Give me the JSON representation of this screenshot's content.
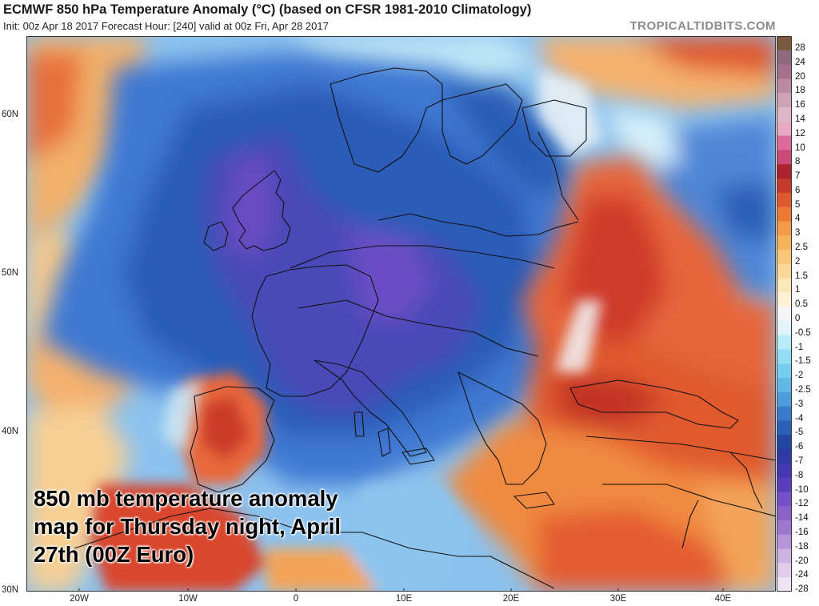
{
  "header": {
    "title": "ECMWF 850 hPa Temperature Anomaly (°C) (based on CFSR 1981-2010 Climatology)",
    "subtitle": "Init: 00z Apr 18 2017   Forecast Hour: [240]   valid at 00z Fri, Apr 28 2017",
    "brand": "TROPICALTIDBITS.COM"
  },
  "map": {
    "lat_labels": [
      "60N",
      "50N",
      "40N",
      "30N"
    ],
    "lon_labels": [
      "20W",
      "10W",
      "0",
      "10E",
      "20E",
      "30E",
      "40E"
    ],
    "region": "Europe",
    "palette": {
      "deep_purple": "#5a3fb8",
      "purple_blue": "#4a55c4",
      "deep_blue": "#2b5fbf",
      "blue": "#3c7ad6",
      "light_blue": "#7ab3ea",
      "cyan": "#a7e3f5",
      "near_zero": "#f2f4f7",
      "light_orange": "#f8c37a",
      "orange": "#f0893f",
      "red_orange": "#e05a2e",
      "red": "#c93428",
      "dark_red": "#9e2325",
      "background_ocean": "#7fb7e8"
    }
  },
  "colorbar": {
    "labels": [
      "28",
      "24",
      "20",
      "18",
      "16",
      "14",
      "12",
      "10",
      "8",
      "7",
      "6",
      "5",
      "4",
      "3",
      "2.5",
      "2",
      "1.5",
      "1",
      "0.5",
      "0",
      "-0.5",
      "-1",
      "-1.5",
      "-2",
      "-2.5",
      "-3",
      "-4",
      "-5",
      "-6",
      "-7",
      "-8",
      "-10",
      "-12",
      "-14",
      "-16",
      "-18",
      "-20",
      "-24",
      "-28"
    ],
    "colors": [
      "#7a5a3e",
      "#8d6a7d",
      "#a5708b",
      "#b98aa0",
      "#cfa2b6",
      "#dbb7c8",
      "#e8a9c3",
      "#d96a9b",
      "#c94a75",
      "#a9242f",
      "#c53a2c",
      "#de5930",
      "#ec7a37",
      "#f39a4a",
      "#f6b35e",
      "#f8c77a",
      "#f9d89a",
      "#fbe7b8",
      "#fdf2d6",
      "#f5f5f5",
      "#dff4fb",
      "#b7ecf8",
      "#92dff3",
      "#76cdee",
      "#62b7e6",
      "#4d9cdc",
      "#3a7ccc",
      "#2c5fb6",
      "#2447a0",
      "#2f3aa6",
      "#4537b0",
      "#5a3fbd",
      "#7450c6",
      "#8a62c8",
      "#9c78ce",
      "#b595d8",
      "#cdb3e2",
      "#e0cdeb",
      "#efe4f3"
    ]
  },
  "caption": {
    "line1": "850 mb temperature anomaly",
    "line2": "map for Thursday night, April",
    "line3": "27th (00Z Euro)"
  }
}
